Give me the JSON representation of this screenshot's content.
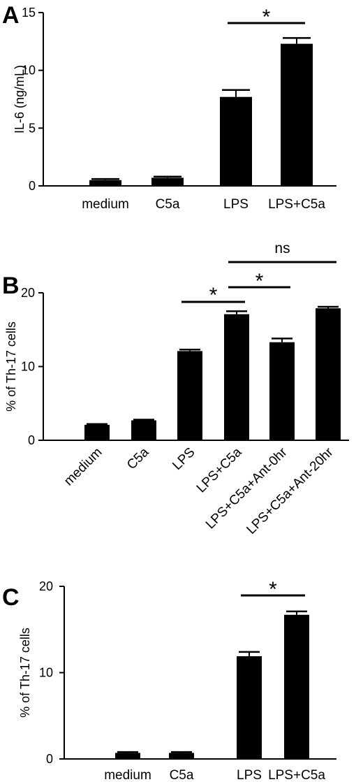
{
  "colors": {
    "bar": "#000000",
    "axis": "#000000",
    "background": "#ffffff"
  },
  "chart_data": [
    {
      "type": "bar",
      "panel_label": "A",
      "ylabel": "IL-6 (ng/mL)",
      "ylim": [
        0,
        15
      ],
      "yticks": [
        0,
        5,
        10,
        15
      ],
      "categories": [
        "medium",
        "C5a",
        "LPS",
        "LPS+C5a"
      ],
      "series": [
        {
          "values": [
            0.5,
            0.7,
            7.7,
            12.3
          ],
          "errors": [
            0.1,
            0.1,
            0.6,
            0.5
          ]
        }
      ],
      "label_style": "horizontal",
      "grid": false,
      "significance": [
        {
          "from": 2,
          "to": 3,
          "label": "*"
        }
      ]
    },
    {
      "type": "bar",
      "panel_label": "B",
      "ylabel": "% of Th-17 cells",
      "ylim": [
        0,
        20
      ],
      "yticks": [
        0,
        10,
        20
      ],
      "categories": [
        "medium",
        "C5a",
        "LPS",
        "LPS+C5a",
        "LPS+C5a+Ant-0hr",
        "LPS+C5a+Ant-20hr"
      ],
      "series": [
        {
          "values": [
            2.1,
            2.7,
            12.1,
            17.1,
            13.3,
            17.9
          ],
          "errors": [
            0.1,
            0.1,
            0.2,
            0.4,
            0.5,
            0.2
          ]
        }
      ],
      "label_style": "rotated",
      "grid": false,
      "significance": [
        {
          "from": 2,
          "to": 3,
          "label": "*"
        },
        {
          "from": 3,
          "to": 4,
          "label": "*"
        },
        {
          "from": 3,
          "to": 5,
          "label": "ns"
        }
      ]
    },
    {
      "type": "bar",
      "panel_label": "C",
      "ylabel": "% of Th-17 cells",
      "ylim": [
        0,
        20
      ],
      "yticks": [
        0,
        10,
        20
      ],
      "categories": [
        "medium",
        "C5a",
        "LPS",
        "LPS+C5a"
      ],
      "series": [
        {
          "values": [
            0.7,
            0.7,
            11.9,
            16.7
          ],
          "errors": [
            0.1,
            0.1,
            0.5,
            0.4
          ]
        }
      ],
      "label_style": "horizontal",
      "grid": false,
      "significance": [
        {
          "from": 2,
          "to": 3,
          "label": "*"
        }
      ]
    }
  ]
}
